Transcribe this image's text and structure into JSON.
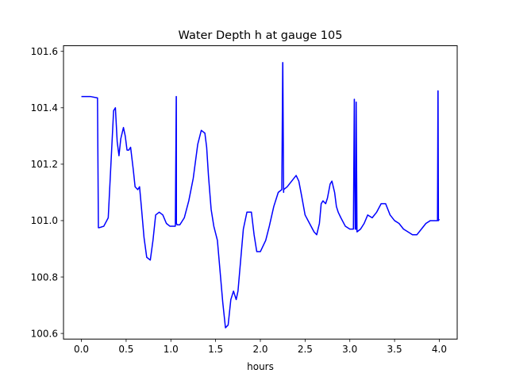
{
  "chart_data": {
    "type": "line",
    "title": "Water Depth h at gauge 105",
    "xlabel": "hours",
    "ylabel": "",
    "xlim": [
      -0.2,
      4.2
    ],
    "ylim": [
      100.58,
      101.62
    ],
    "xticks": [
      0.0,
      0.5,
      1.0,
      1.5,
      2.0,
      2.5,
      3.0,
      3.5,
      4.0
    ],
    "xtick_labels": [
      "0.0",
      "0.5",
      "1.0",
      "1.5",
      "2.0",
      "2.5",
      "3.0",
      "3.5",
      "4.0"
    ],
    "yticks": [
      100.6,
      100.8,
      101.0,
      101.2,
      101.4,
      101.6
    ],
    "ytick_labels": [
      "100.6",
      "100.8",
      "101.0",
      "101.2",
      "101.4",
      "101.6"
    ],
    "grid": false,
    "series": [
      {
        "color": "#0000ff",
        "x": [
          0.0,
          0.1,
          0.18,
          0.19,
          0.2,
          0.25,
          0.3,
          0.33,
          0.36,
          0.38,
          0.4,
          0.42,
          0.44,
          0.47,
          0.49,
          0.51,
          0.53,
          0.55,
          0.58,
          0.6,
          0.63,
          0.65,
          0.67,
          0.7,
          0.73,
          0.77,
          0.8,
          0.83,
          0.87,
          0.91,
          0.95,
          0.99,
          1.02,
          1.05,
          1.06,
          1.061,
          1.062,
          1.07,
          1.1,
          1.15,
          1.2,
          1.25,
          1.3,
          1.34,
          1.38,
          1.4,
          1.42,
          1.45,
          1.48,
          1.52,
          1.55,
          1.58,
          1.61,
          1.64,
          1.67,
          1.7,
          1.73,
          1.75,
          1.78,
          1.81,
          1.85,
          1.9,
          1.93,
          1.96,
          2.0,
          2.03,
          2.06,
          2.1,
          2.15,
          2.2,
          2.24,
          2.25,
          2.251,
          2.26,
          2.261,
          2.3,
          2.35,
          2.4,
          2.43,
          2.46,
          2.5,
          2.55,
          2.6,
          2.63,
          2.66,
          2.68,
          2.7,
          2.73,
          2.75,
          2.78,
          2.8,
          2.83,
          2.85,
          2.87,
          2.9,
          2.95,
          3.0,
          3.04,
          3.05,
          3.051,
          3.06,
          3.07,
          3.071,
          3.08,
          3.12,
          3.16,
          3.2,
          3.25,
          3.3,
          3.35,
          3.4,
          3.45,
          3.5,
          3.55,
          3.6,
          3.65,
          3.7,
          3.75,
          3.8,
          3.85,
          3.9,
          3.95,
          3.98,
          3.985,
          3.986,
          3.99,
          4.0
        ],
        "values": [
          101.44,
          101.44,
          101.435,
          100.975,
          100.975,
          100.98,
          101.01,
          101.2,
          101.39,
          101.4,
          101.28,
          101.23,
          101.29,
          101.33,
          101.3,
          101.25,
          101.25,
          101.26,
          101.18,
          101.12,
          101.11,
          101.12,
          101.05,
          100.94,
          100.87,
          100.86,
          100.93,
          101.02,
          101.03,
          101.02,
          100.99,
          100.98,
          100.98,
          100.98,
          101.44,
          101.44,
          100.99,
          100.985,
          100.985,
          101.01,
          101.07,
          101.15,
          101.27,
          101.32,
          101.31,
          101.26,
          101.16,
          101.04,
          100.98,
          100.93,
          100.82,
          100.71,
          100.62,
          100.63,
          100.72,
          100.75,
          100.72,
          100.75,
          100.86,
          100.97,
          101.03,
          101.03,
          100.95,
          100.89,
          100.89,
          100.91,
          100.93,
          100.98,
          101.05,
          101.1,
          101.11,
          101.56,
          101.56,
          101.1,
          101.11,
          101.12,
          101.14,
          101.16,
          101.14,
          101.09,
          101.02,
          100.99,
          100.96,
          100.95,
          100.99,
          101.06,
          101.07,
          101.06,
          101.08,
          101.13,
          101.14,
          101.1,
          101.05,
          101.03,
          101.01,
          100.98,
          100.97,
          100.97,
          101.43,
          101.43,
          100.97,
          100.97,
          101.42,
          100.96,
          100.97,
          100.99,
          101.02,
          101.01,
          101.03,
          101.06,
          101.06,
          101.02,
          101.0,
          100.99,
          100.97,
          100.96,
          100.95,
          100.95,
          100.97,
          100.99,
          101.0,
          101.0,
          101.0,
          101.46,
          101.46,
          101.0,
          101.005
        ]
      }
    ]
  }
}
